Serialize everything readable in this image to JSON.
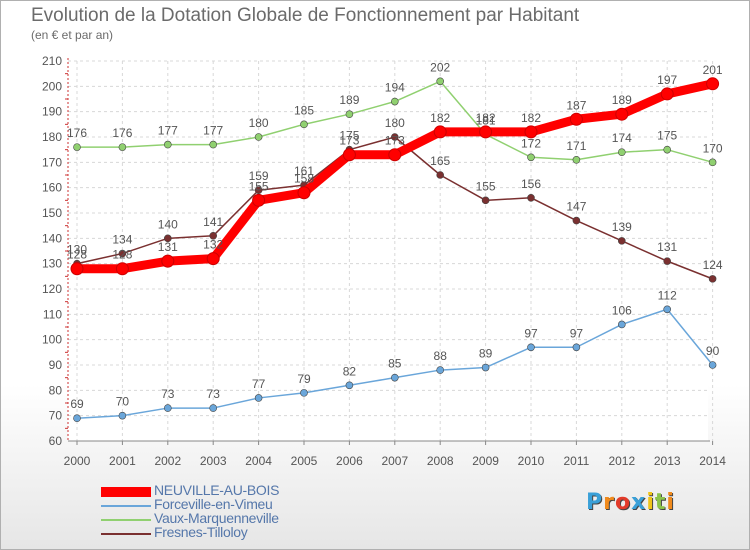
{
  "title": "Evolution de la Dotation Globale de Fonctionnement par Habitant",
  "subtitle": "(en € et par an)",
  "brand": {
    "letters": [
      "P",
      "r",
      "o",
      "x",
      "i",
      "t",
      "i"
    ],
    "colors": [
      "#3aa0d8",
      "#f08a1c",
      "#e23b2a",
      "#3aa0d8",
      "#f0c419",
      "#8bc34a",
      "#f08a1c"
    ]
  },
  "chart_data": {
    "type": "line",
    "title": "Evolution de la Dotation Globale de Fonctionnement par Habitant",
    "subtitle": "(en € et par an)",
    "xlabel": "",
    "ylabel": "",
    "x": [
      "2000",
      "2001",
      "2002",
      "2003",
      "2004",
      "2005",
      "2006",
      "2007",
      "2008",
      "2009",
      "2010",
      "2011",
      "2012",
      "2013",
      "2014"
    ],
    "ylim": [
      60,
      210
    ],
    "yticks": [
      60,
      70,
      80,
      90,
      100,
      110,
      120,
      130,
      140,
      150,
      160,
      170,
      180,
      190,
      200,
      210
    ],
    "grid": true,
    "legend_position": "bottom-left",
    "series": [
      {
        "name": "NEUVILLE-AU-BOIS",
        "color": "#ff0000",
        "values": [
          128,
          128,
          131,
          132,
          155,
          158,
          173,
          173,
          182,
          182,
          182,
          187,
          189,
          197,
          201
        ]
      },
      {
        "name": "Forceville-en-Vimeu",
        "color": "#6aa6da",
        "values": [
          69,
          70,
          73,
          73,
          77,
          79,
          82,
          85,
          88,
          89,
          97,
          97,
          106,
          112,
          90
        ]
      },
      {
        "name": "Vaux-Marquenneville",
        "color": "#90d070",
        "values": [
          176,
          176,
          177,
          177,
          180,
          185,
          189,
          194,
          202,
          181,
          172,
          171,
          174,
          175,
          170
        ]
      },
      {
        "name": "Fresnes-Tilloloy",
        "color": "#7a3030",
        "values": [
          130,
          134,
          140,
          141,
          159,
          161,
          175,
          180,
          165,
          155,
          156,
          147,
          139,
          131,
          124
        ]
      }
    ]
  }
}
